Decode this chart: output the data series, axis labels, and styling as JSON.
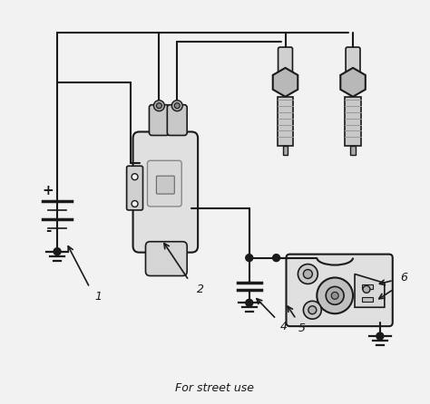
{
  "title": "For street use",
  "bg_color": "#f2f2f2",
  "line_color": "#1a1a1a",
  "lw": 1.5,
  "label_fontsize": 9,
  "title_fontsize": 9
}
